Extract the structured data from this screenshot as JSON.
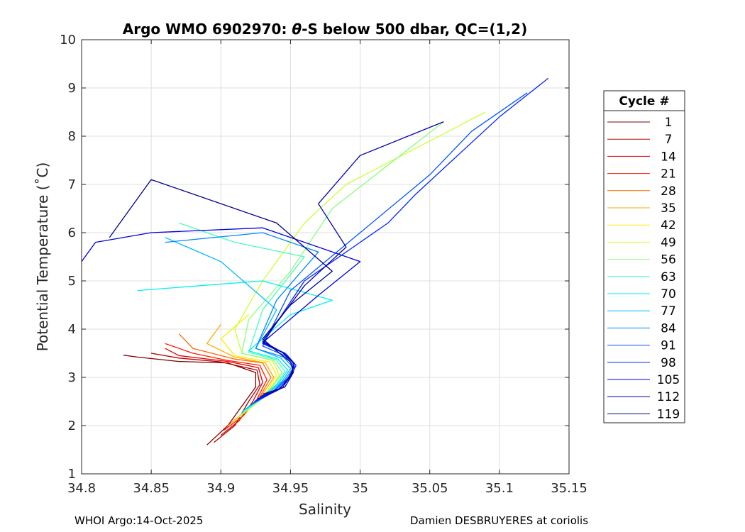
{
  "chart_data": {
    "type": "line",
    "title_prefix": "Argo WMO 6902970: ",
    "title_theta": "θ",
    "title_suffix": "-S below 500 dbar,  QC=(1,2)",
    "xlabel": "Salinity",
    "ylabel": "Potential Temperature (˚C)",
    "xlim": [
      34.8,
      35.15
    ],
    "ylim": [
      1,
      10
    ],
    "x_ticks": [
      34.8,
      34.85,
      34.9,
      34.95,
      35,
      35.05,
      35.1,
      35.15
    ],
    "x_tick_labels": [
      "34.8",
      "34.85",
      "34.9",
      "34.95",
      "35",
      "35.05",
      "35.1",
      "35.15"
    ],
    "y_ticks": [
      1,
      2,
      3,
      4,
      5,
      6,
      7,
      8,
      9,
      10
    ],
    "y_tick_labels": [
      "1",
      "2",
      "3",
      "4",
      "5",
      "6",
      "7",
      "8",
      "9",
      "10"
    ],
    "grid": true,
    "legend_title": "Cycle #",
    "legend_placement": "right-outside",
    "legend": [
      {
        "label": "1",
        "color": "#800000"
      },
      {
        "label": "7",
        "color": "#b00000"
      },
      {
        "label": "14",
        "color": "#dd0000"
      },
      {
        "label": "21",
        "color": "#ff1c00"
      },
      {
        "label": "28",
        "color": "#ff6600"
      },
      {
        "label": "35",
        "color": "#ffaa00"
      },
      {
        "label": "42",
        "color": "#ffee00"
      },
      {
        "label": "49",
        "color": "#ccff33"
      },
      {
        "label": "56",
        "color": "#88ff77"
      },
      {
        "label": "63",
        "color": "#44ffbb"
      },
      {
        "label": "70",
        "color": "#00f0f0"
      },
      {
        "label": "77",
        "color": "#00bbff"
      },
      {
        "label": "84",
        "color": "#0088ff"
      },
      {
        "label": "91",
        "color": "#0055ff"
      },
      {
        "label": "98",
        "color": "#0022ff"
      },
      {
        "label": "105",
        "color": "#0000e0"
      },
      {
        "label": "112",
        "color": "#0000b0"
      },
      {
        "label": "119",
        "color": "#000090"
      }
    ],
    "series_profiles": [
      {
        "cycle": "1",
        "points": [
          [
            34.89,
            1.6
          ],
          [
            34.905,
            2.0
          ],
          [
            34.915,
            2.4
          ],
          [
            34.925,
            2.8
          ],
          [
            34.925,
            3.1
          ],
          [
            34.905,
            3.3
          ],
          [
            34.87,
            3.33
          ],
          [
            34.84,
            3.42
          ],
          [
            34.83,
            3.46
          ]
        ]
      },
      {
        "cycle": "7",
        "points": [
          [
            34.895,
            1.65
          ],
          [
            34.91,
            2.0
          ],
          [
            34.92,
            2.5
          ],
          [
            34.928,
            2.85
          ],
          [
            34.926,
            3.15
          ],
          [
            34.9,
            3.32
          ],
          [
            34.87,
            3.4
          ],
          [
            34.85,
            3.5
          ]
        ]
      },
      {
        "cycle": "14",
        "points": [
          [
            34.9,
            1.8
          ],
          [
            34.913,
            2.1
          ],
          [
            34.923,
            2.5
          ],
          [
            34.93,
            2.9
          ],
          [
            34.927,
            3.2
          ],
          [
            34.905,
            3.33
          ],
          [
            34.87,
            3.45
          ],
          [
            34.86,
            3.6
          ]
        ]
      },
      {
        "cycle": "21",
        "points": [
          [
            34.902,
            1.9
          ],
          [
            34.916,
            2.2
          ],
          [
            34.926,
            2.55
          ],
          [
            34.933,
            2.95
          ],
          [
            34.928,
            3.25
          ],
          [
            34.905,
            3.35
          ],
          [
            34.88,
            3.5
          ],
          [
            34.86,
            3.7
          ]
        ]
      },
      {
        "cycle": "28",
        "points": [
          [
            34.905,
            2.0
          ],
          [
            34.918,
            2.3
          ],
          [
            34.928,
            2.6
          ],
          [
            34.936,
            3.0
          ],
          [
            34.93,
            3.3
          ],
          [
            34.91,
            3.38
          ],
          [
            34.88,
            3.6
          ],
          [
            34.87,
            3.9
          ]
        ]
      },
      {
        "cycle": "35",
        "points": [
          [
            34.907,
            2.05
          ],
          [
            34.92,
            2.35
          ],
          [
            34.93,
            2.65
          ],
          [
            34.938,
            3.0
          ],
          [
            34.932,
            3.3
          ],
          [
            34.91,
            3.42
          ],
          [
            34.89,
            3.7
          ],
          [
            34.9,
            4.1
          ]
        ]
      },
      {
        "cycle": "42",
        "points": [
          [
            34.91,
            2.1
          ],
          [
            34.922,
            2.4
          ],
          [
            34.933,
            2.7
          ],
          [
            34.94,
            3.05
          ],
          [
            34.935,
            3.32
          ],
          [
            34.91,
            3.45
          ],
          [
            34.9,
            3.8
          ],
          [
            34.92,
            4.3
          ]
        ]
      },
      {
        "cycle": "49",
        "points": [
          [
            34.912,
            2.15
          ],
          [
            34.925,
            2.45
          ],
          [
            34.935,
            2.75
          ],
          [
            34.942,
            3.05
          ],
          [
            34.937,
            3.35
          ],
          [
            34.915,
            3.5
          ],
          [
            34.91,
            4.0
          ],
          [
            34.93,
            5.0
          ],
          [
            34.96,
            6.2
          ],
          [
            34.99,
            7.0
          ],
          [
            35.05,
            7.9
          ],
          [
            35.09,
            8.5
          ]
        ]
      },
      {
        "cycle": "56",
        "points": [
          [
            34.913,
            2.2
          ],
          [
            34.927,
            2.5
          ],
          [
            34.937,
            2.8
          ],
          [
            34.944,
            3.1
          ],
          [
            34.938,
            3.35
          ],
          [
            34.915,
            3.5
          ],
          [
            34.92,
            4.2
          ],
          [
            34.95,
            5.2
          ],
          [
            34.98,
            6.5
          ],
          [
            35.02,
            7.4
          ],
          [
            35.06,
            8.3
          ]
        ]
      },
      {
        "cycle": "63",
        "points": [
          [
            34.915,
            2.25
          ],
          [
            34.928,
            2.55
          ],
          [
            34.94,
            2.85
          ],
          [
            34.946,
            3.12
          ],
          [
            34.94,
            3.36
          ],
          [
            34.92,
            3.52
          ],
          [
            34.93,
            4.4
          ],
          [
            34.96,
            5.5
          ],
          [
            34.91,
            5.8
          ],
          [
            34.87,
            6.2
          ]
        ]
      },
      {
        "cycle": "70",
        "points": [
          [
            34.916,
            2.3
          ],
          [
            34.93,
            2.6
          ],
          [
            34.942,
            2.9
          ],
          [
            34.948,
            3.15
          ],
          [
            34.941,
            3.38
          ],
          [
            34.92,
            3.55
          ],
          [
            34.95,
            4.3
          ],
          [
            34.98,
            4.6
          ],
          [
            34.93,
            5.0
          ],
          [
            34.84,
            4.8
          ]
        ]
      },
      {
        "cycle": "77",
        "points": [
          [
            34.918,
            2.35
          ],
          [
            34.932,
            2.62
          ],
          [
            34.944,
            2.92
          ],
          [
            34.95,
            3.18
          ],
          [
            34.943,
            3.4
          ],
          [
            34.925,
            3.6
          ],
          [
            34.94,
            4.4
          ],
          [
            34.9,
            5.4
          ],
          [
            34.86,
            5.9
          ]
        ]
      },
      {
        "cycle": "84",
        "points": [
          [
            34.92,
            2.4
          ],
          [
            34.935,
            2.65
          ],
          [
            34.946,
            2.95
          ],
          [
            34.952,
            3.2
          ],
          [
            34.945,
            3.42
          ],
          [
            34.925,
            3.6
          ],
          [
            34.94,
            4.6
          ],
          [
            34.97,
            5.6
          ],
          [
            34.93,
            6.0
          ],
          [
            34.86,
            5.8
          ]
        ]
      },
      {
        "cycle": "91",
        "points": [
          [
            34.922,
            2.45
          ],
          [
            34.937,
            2.68
          ],
          [
            34.948,
            2.98
          ],
          [
            34.953,
            3.22
          ],
          [
            34.946,
            3.45
          ],
          [
            34.93,
            3.65
          ],
          [
            34.95,
            4.8
          ],
          [
            35.0,
            6.0
          ],
          [
            35.05,
            7.2
          ],
          [
            35.08,
            8.1
          ],
          [
            35.12,
            8.9
          ]
        ]
      },
      {
        "cycle": "98",
        "points": [
          [
            34.924,
            2.5
          ],
          [
            34.94,
            2.72
          ],
          [
            34.95,
            3.0
          ],
          [
            34.954,
            3.25
          ],
          [
            34.947,
            3.48
          ],
          [
            34.93,
            3.7
          ],
          [
            34.96,
            5.0
          ],
          [
            35.02,
            6.2
          ],
          [
            35.04,
            6.8
          ],
          [
            35.07,
            7.6
          ],
          [
            35.1,
            8.4
          ],
          [
            35.135,
            9.2
          ]
        ]
      },
      {
        "cycle": "105",
        "points": [
          [
            34.926,
            2.55
          ],
          [
            34.942,
            2.75
          ],
          [
            34.95,
            3.05
          ],
          [
            34.953,
            3.28
          ],
          [
            34.946,
            3.5
          ],
          [
            34.93,
            3.72
          ],
          [
            34.97,
            4.7
          ],
          [
            35.0,
            5.4
          ],
          [
            34.93,
            6.1
          ],
          [
            34.85,
            6.0
          ],
          [
            34.81,
            5.8
          ],
          [
            34.8,
            5.4
          ]
        ]
      },
      {
        "cycle": "112",
        "points": [
          [
            34.928,
            2.6
          ],
          [
            34.944,
            2.78
          ],
          [
            34.951,
            3.08
          ],
          [
            34.952,
            3.3
          ],
          [
            34.944,
            3.52
          ],
          [
            34.93,
            3.75
          ],
          [
            34.96,
            4.9
          ],
          [
            34.99,
            5.7
          ],
          [
            34.97,
            6.6
          ],
          [
            35.0,
            7.6
          ],
          [
            35.06,
            8.3
          ]
        ]
      },
      {
        "cycle": "119",
        "points": [
          [
            34.93,
            2.65
          ],
          [
            34.946,
            2.8
          ],
          [
            34.952,
            3.1
          ],
          [
            34.95,
            3.32
          ],
          [
            34.94,
            3.55
          ],
          [
            34.93,
            3.8
          ],
          [
            34.95,
            4.5
          ],
          [
            34.98,
            5.2
          ],
          [
            34.94,
            6.2
          ],
          [
            34.85,
            7.1
          ],
          [
            34.82,
            5.9
          ]
        ]
      }
    ]
  },
  "footer": {
    "left": "WHOI Argo:14-Oct-2025",
    "right": "Damien DESBRUYERES at coriolis"
  }
}
